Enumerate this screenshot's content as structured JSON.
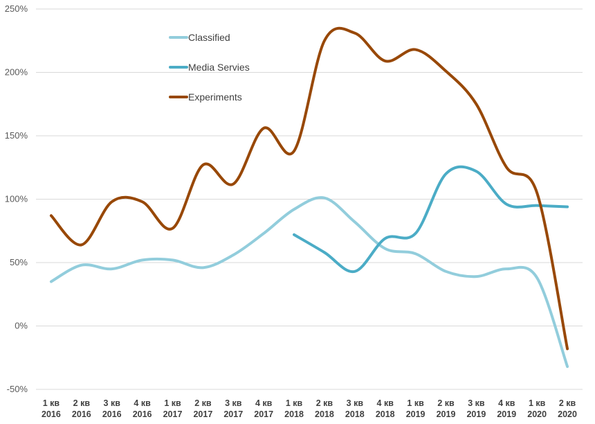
{
  "chart_data": {
    "type": "line",
    "smooth": true,
    "categories": [
      [
        "1 кв",
        "2016"
      ],
      [
        "2 кв",
        "2016"
      ],
      [
        "3 кв",
        "2016"
      ],
      [
        "4 кв",
        "2016"
      ],
      [
        "1 кв",
        "2017"
      ],
      [
        "2 кв",
        "2017"
      ],
      [
        "3 кв",
        "2017"
      ],
      [
        "4 кв",
        "2017"
      ],
      [
        "1 кв",
        "2018"
      ],
      [
        "2 кв",
        "2018"
      ],
      [
        "3 кв",
        "2018"
      ],
      [
        "4 кв",
        "2018"
      ],
      [
        "1 кв",
        "2019"
      ],
      [
        "2 кв",
        "2019"
      ],
      [
        "3 кв",
        "2019"
      ],
      [
        "4 кв",
        "2019"
      ],
      [
        "1 кв",
        "2020"
      ],
      [
        "2 кв",
        "2020"
      ]
    ],
    "yticks": [
      "-50%",
      "0%",
      "50%",
      "100%",
      "150%",
      "200%",
      "250%"
    ],
    "ylim": [
      -50,
      250
    ],
    "ytick_step": 50,
    "grid": true,
    "legend_position": "top-left-inside",
    "series": [
      {
        "name": "Classified",
        "color": "#92CDDC",
        "values": [
          35,
          48,
          45,
          52,
          52,
          46,
          56,
          73,
          92,
          101,
          82,
          61,
          57,
          43,
          39,
          45,
          38,
          -32
        ]
      },
      {
        "name": "Media Servies",
        "color": "#4BACC6",
        "values": [
          null,
          null,
          null,
          null,
          null,
          null,
          null,
          null,
          72,
          58,
          43,
          69,
          73,
          120,
          122,
          96,
          95,
          94
        ]
      },
      {
        "name": "Experiments",
        "color": "#984807",
        "values": [
          87,
          64,
          98,
          98,
          77,
          127,
          112,
          156,
          138,
          225,
          231,
          209,
          218,
          201,
          175,
          125,
          105,
          -18
        ]
      }
    ]
  }
}
